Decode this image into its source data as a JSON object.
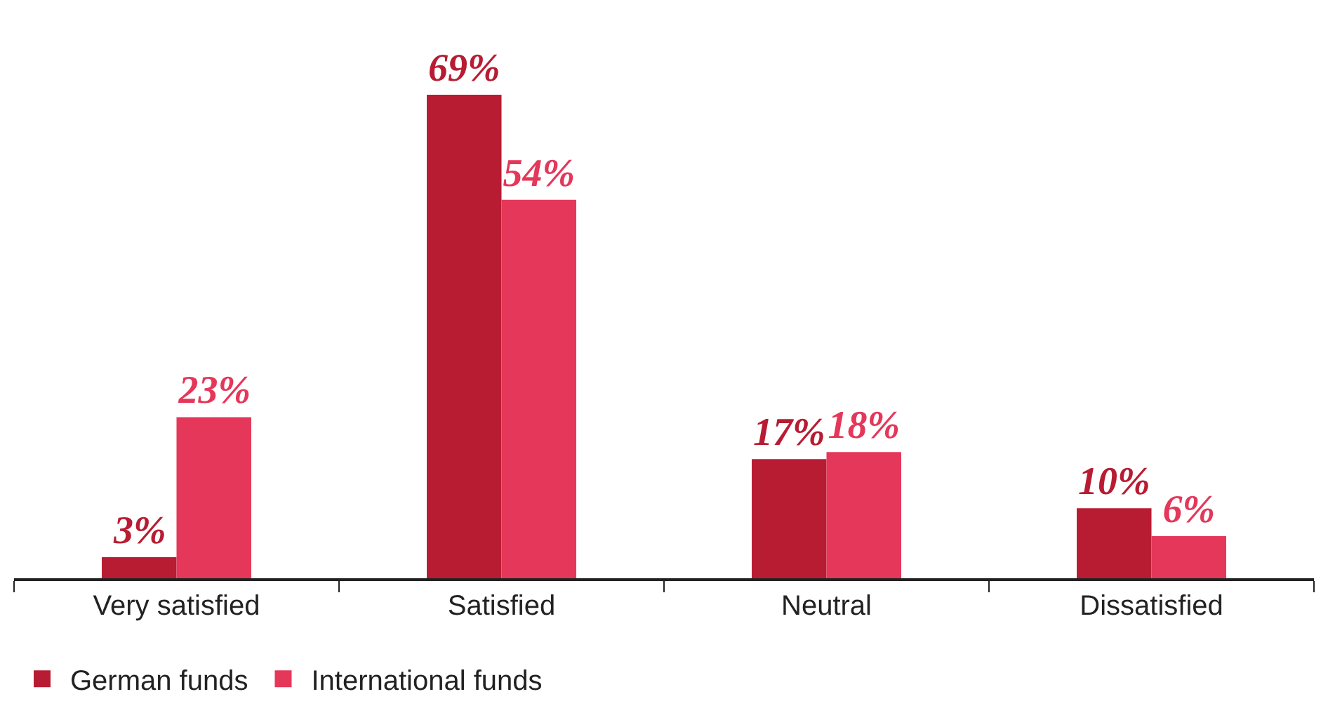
{
  "chart_data": {
    "type": "bar",
    "categories": [
      "Very satisfied",
      "Satisfied",
      "Neutral",
      "Dissatisfied"
    ],
    "series": [
      {
        "name": "German funds",
        "color": "#b81c32",
        "values": [
          3,
          69,
          17,
          10
        ],
        "value_labels": [
          "3%",
          "69%",
          "17%",
          "10%"
        ]
      },
      {
        "name": "International funds",
        "color": "#e5375a",
        "values": [
          23,
          54,
          18,
          6
        ],
        "value_labels": [
          "23%",
          "54%",
          "18%",
          "6%"
        ]
      }
    ],
    "legend": "bottom left"
  }
}
